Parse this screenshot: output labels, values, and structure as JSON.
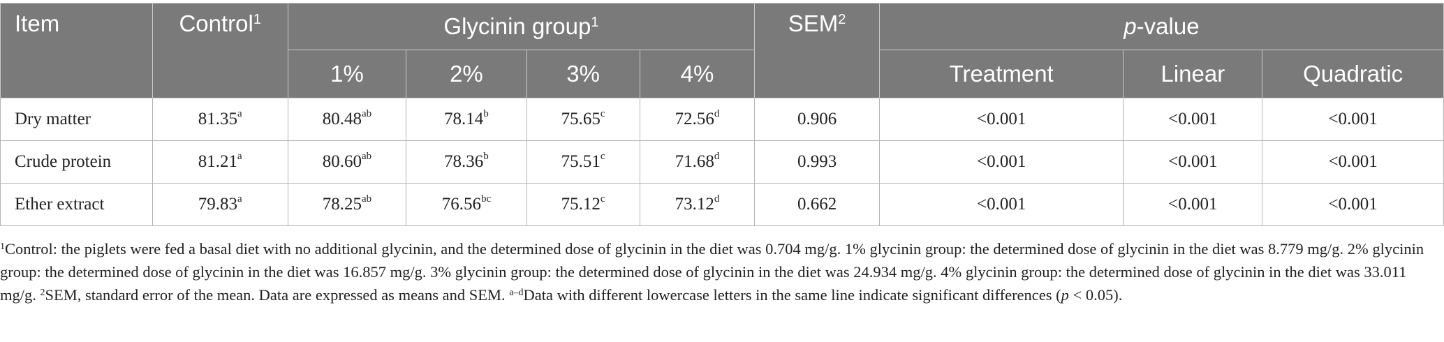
{
  "header": {
    "item": "Item",
    "control": "Control",
    "control_sup": "1",
    "glycinin_group": "Glycinin group",
    "glycinin_sup": "1",
    "sem": "SEM",
    "sem_sup": "2",
    "pvalue_p": "p",
    "pvalue_rest": "-value",
    "doses": [
      "1%",
      "2%",
      "3%",
      "4%"
    ],
    "pcols": [
      "Treatment",
      "Linear",
      "Quadratic"
    ]
  },
  "rows": [
    {
      "item": "Dry matter",
      "control": {
        "v": "81.35",
        "s": "a"
      },
      "g1": {
        "v": "80.48",
        "s": "ab"
      },
      "g2": {
        "v": "78.14",
        "s": "b"
      },
      "g3": {
        "v": "75.65",
        "s": "c"
      },
      "g4": {
        "v": "72.56",
        "s": "d"
      },
      "sem": "0.906",
      "treatment": "<0.001",
      "linear": "<0.001",
      "quadratic": "<0.001"
    },
    {
      "item": "Crude protein",
      "control": {
        "v": "81.21",
        "s": "a"
      },
      "g1": {
        "v": "80.60",
        "s": "ab"
      },
      "g2": {
        "v": "78.36",
        "s": "b"
      },
      "g3": {
        "v": "75.51",
        "s": "c"
      },
      "g4": {
        "v": "71.68",
        "s": "d"
      },
      "sem": "0.993",
      "treatment": "<0.001",
      "linear": "<0.001",
      "quadratic": "<0.001"
    },
    {
      "item": "Ether extract",
      "control": {
        "v": "79.83",
        "s": "a"
      },
      "g1": {
        "v": "78.25",
        "s": "ab"
      },
      "g2": {
        "v": "76.56",
        "s": "bc"
      },
      "g3": {
        "v": "75.12",
        "s": "c"
      },
      "g4": {
        "v": "73.12",
        "s": "d"
      },
      "sem": "0.662",
      "treatment": "<0.001",
      "linear": "<0.001",
      "quadratic": "<0.001"
    }
  ],
  "footnote": {
    "sup1": "1",
    "text1": "Control: the piglets were fed a basal diet with no additional glycinin, and the determined dose of glycinin in the diet was 0.704 mg/g. 1% glycinin group: the determined dose of glycinin in the diet was 8.779 mg/g. 2% glycinin group: the determined dose of glycinin in the diet was 16.857 mg/g. 3% glycinin group: the determined dose of glycinin in the diet was 24.934 mg/g. 4% glycinin group: the determined dose of glycinin in the diet was 33.011 mg/g. ",
    "sup2": "2",
    "text2": "SEM, standard error of the mean. Data are expressed as means and SEM. ",
    "sup3": "a–d",
    "text3": "Data with different lowercase letters in the same line indicate significant differences (",
    "p": "p",
    "text4": " < 0.05)."
  }
}
